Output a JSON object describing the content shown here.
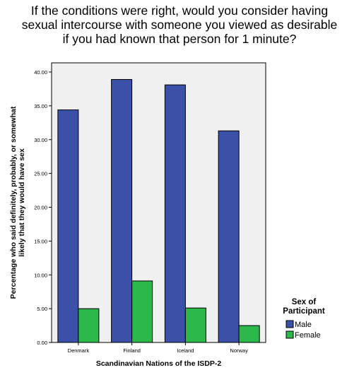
{
  "title_lines": [
    "If the conditions were right, would you consider having",
    "sexual intercourse with someone you viewed as desirable",
    "if you had known that person for 1 minute?"
  ],
  "chart_data": {
    "type": "bar",
    "categories": [
      "Denmark",
      "Finland",
      "Iceland",
      "Norway"
    ],
    "series": [
      {
        "name": "Male",
        "color": "#3b51a9",
        "values": [
          34.4,
          38.9,
          38.1,
          31.3
        ]
      },
      {
        "name": "Female",
        "color": "#2db84b",
        "values": [
          5.0,
          9.1,
          5.1,
          2.5
        ]
      }
    ],
    "xlabel": "Scandinavian Nations of the ISDP-2",
    "ylabel_lines": [
      "Percentage who said definitely, probably, or somewhat",
      "likely that they would have sex"
    ],
    "ylim": [
      0,
      40
    ],
    "yticks": [
      "0.00",
      "5.00",
      "10.00",
      "15.00",
      "20.00",
      "25.00",
      "30.00",
      "35.00",
      "40.00"
    ],
    "legend": {
      "title_lines": [
        "Sex of",
        "Participant"
      ],
      "position": "right"
    },
    "plot_background": "#f0f0f0",
    "grid": false
  }
}
